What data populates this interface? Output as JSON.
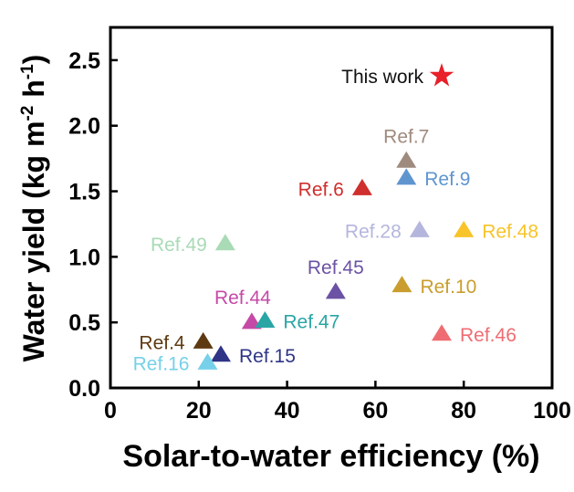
{
  "chart_data": {
    "type": "scatter",
    "xlabel": "Solar-to-water efficiency (%)",
    "ylabel_main": "Water yield (kg m",
    "ylabel_mid": " h",
    "ylabel_close": ")",
    "ylabel_sup1": "-2",
    "ylabel_sup2": "-1",
    "xlim": [
      0,
      100
    ],
    "ylim": [
      0.0,
      2.75
    ],
    "xticks": [
      "0",
      "20",
      "40",
      "60",
      "80",
      "100"
    ],
    "yticks": [
      "0.0",
      "0.5",
      "1.0",
      "1.5",
      "2.0",
      "2.5"
    ],
    "grid": false,
    "legend": "none",
    "points": [
      {
        "label": "This work",
        "x": 75,
        "y": 2.38,
        "marker": "star",
        "color": "#e8202a",
        "label_pos": "left"
      },
      {
        "label": "Ref.7",
        "x": 67,
        "y": 1.73,
        "marker": "triangle",
        "color": "#9f8b7e",
        "label_pos": "top"
      },
      {
        "label": "Ref.9",
        "x": 67,
        "y": 1.6,
        "marker": "triangle",
        "color": "#5f95cf",
        "label_pos": "right"
      },
      {
        "label": "Ref.6",
        "x": 57,
        "y": 1.52,
        "marker": "triangle",
        "color": "#cf2f2d",
        "label_pos": "left"
      },
      {
        "label": "Ref.28",
        "x": 70,
        "y": 1.2,
        "marker": "triangle",
        "color": "#b5b6dd",
        "label_pos": "left"
      },
      {
        "label": "Ref.48",
        "x": 80,
        "y": 1.2,
        "marker": "triangle",
        "color": "#f8c42a",
        "label_pos": "right"
      },
      {
        "label": "Ref.49",
        "x": 26,
        "y": 1.1,
        "marker": "triangle",
        "color": "#a9dbb6",
        "label_pos": "left"
      },
      {
        "label": "Ref.45",
        "x": 51,
        "y": 0.73,
        "marker": "triangle",
        "color": "#6b52a4",
        "label_pos": "top"
      },
      {
        "label": "Ref.10",
        "x": 66,
        "y": 0.78,
        "marker": "triangle",
        "color": "#c99e2e",
        "label_pos": "right"
      },
      {
        "label": "Ref.44",
        "x": 32,
        "y": 0.5,
        "marker": "triangle",
        "color": "#c54aa7",
        "label_pos": "topleft"
      },
      {
        "label": "Ref.47",
        "x": 35,
        "y": 0.51,
        "marker": "triangle",
        "color": "#2aa5a5",
        "label_pos": "right"
      },
      {
        "label": "Ref.46",
        "x": 75,
        "y": 0.41,
        "marker": "triangle",
        "color": "#ef6d72",
        "label_pos": "right"
      },
      {
        "label": "Ref.4",
        "x": 21,
        "y": 0.35,
        "marker": "triangle",
        "color": "#5e3a12",
        "label_pos": "left"
      },
      {
        "label": "Ref.15",
        "x": 25,
        "y": 0.25,
        "marker": "triangle",
        "color": "#2f3487",
        "label_pos": "right"
      },
      {
        "label": "Ref.16",
        "x": 22,
        "y": 0.19,
        "marker": "triangle",
        "color": "#76d0e9",
        "label_pos": "left"
      }
    ]
  }
}
